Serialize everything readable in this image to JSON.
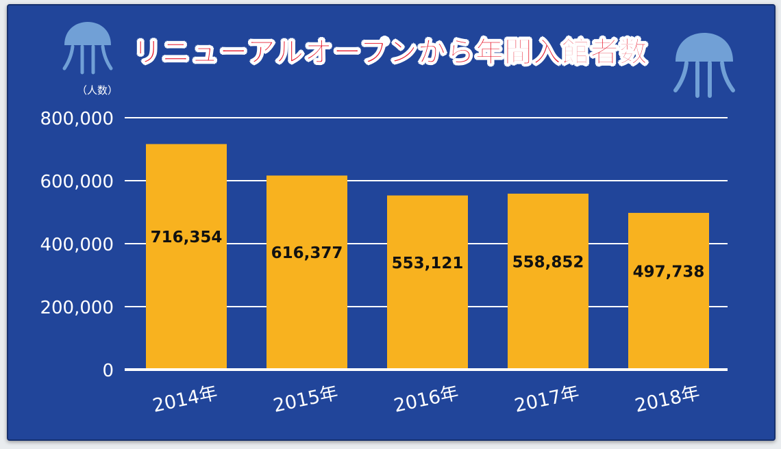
{
  "colors": {
    "background": "#21459a",
    "bar": "#f8b21f",
    "gridline": "#ffffff",
    "title": "#e6162a",
    "bar_label": "#111111",
    "jellyfish": "#7fb0e0"
  },
  "icons": [
    "jellyfish-icon",
    "jellyfish-icon"
  ],
  "chart_data": {
    "type": "bar",
    "title": "リニューアルオープンから年間入館者数",
    "unit_label": "（人数）",
    "xlabel": "",
    "ylabel": "",
    "categories": [
      "2014年",
      "2015年",
      "2016年",
      "2017年",
      "2018年"
    ],
    "values": [
      716354,
      616377,
      553121,
      558852,
      497738
    ],
    "data_labels": [
      "716,354",
      "616,377",
      "553,121",
      "558,852",
      "497,738"
    ],
    "ylim": [
      0,
      800000
    ],
    "yticks": [
      0,
      200000,
      400000,
      600000,
      800000
    ],
    "ytick_labels": [
      "0",
      "200,000",
      "400,000",
      "600,000",
      "800,000"
    ],
    "grid": true,
    "legend": "none"
  }
}
